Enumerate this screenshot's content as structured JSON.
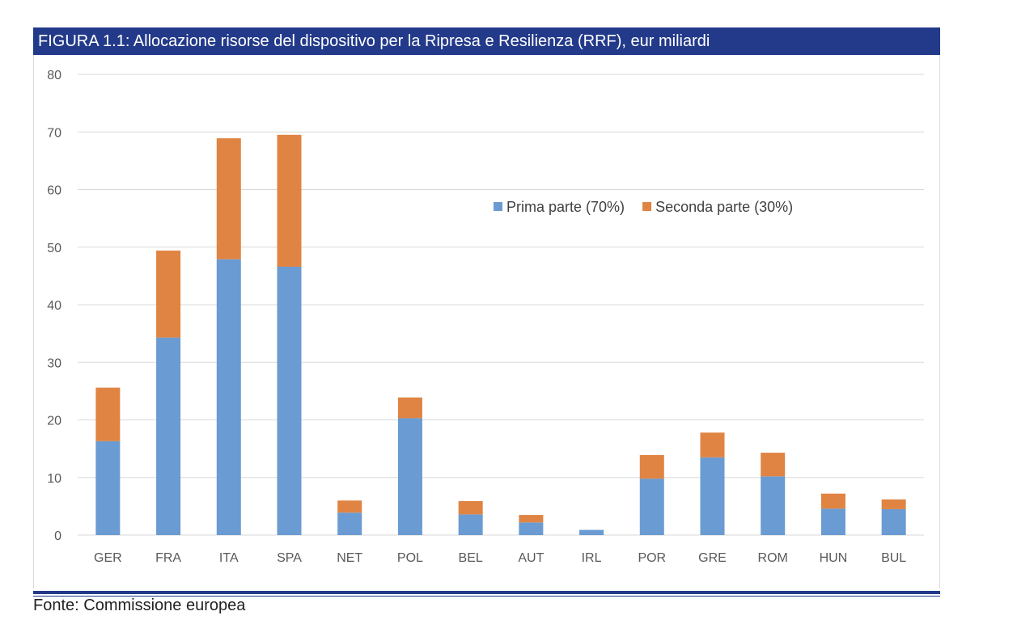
{
  "figure": {
    "title": "FIGURA 1.1: Allocazione risorse del dispositivo per la Ripresa e Resilienza (RRF), eur miliardi",
    "source": "Fonte: Commissione europea"
  },
  "colors": {
    "header_bg": "#233a8a",
    "series_1": "#6a9bd2",
    "series_2": "#e08443",
    "grid": "#d9d9d9"
  },
  "chart_data": {
    "type": "bar",
    "stacked": true,
    "title": "",
    "xlabel": "",
    "ylabel": "",
    "ylim": [
      0,
      80
    ],
    "yticks": [
      0,
      10,
      20,
      30,
      40,
      50,
      60,
      70,
      80
    ],
    "grid": true,
    "legend_position": "upper-right-inside",
    "categories": [
      "GER",
      "FRA",
      "ITA",
      "SPA",
      "NET",
      "POL",
      "BEL",
      "AUT",
      "IRL",
      "POR",
      "GRE",
      "ROM",
      "HUN",
      "BUL"
    ],
    "series": [
      {
        "name": "Prima parte (70%)",
        "color": "#6a9bd2",
        "values": [
          16.3,
          34.3,
          47.9,
          46.6,
          3.9,
          20.3,
          3.6,
          2.2,
          0.9,
          9.8,
          13.5,
          10.2,
          4.6,
          4.5
        ]
      },
      {
        "name": "Seconda parte (30%)",
        "color": "#e08443",
        "values": [
          9.3,
          15.1,
          21.0,
          22.9,
          2.1,
          3.6,
          2.3,
          1.3,
          0.0,
          4.1,
          4.3,
          4.1,
          2.6,
          1.7
        ]
      }
    ]
  }
}
